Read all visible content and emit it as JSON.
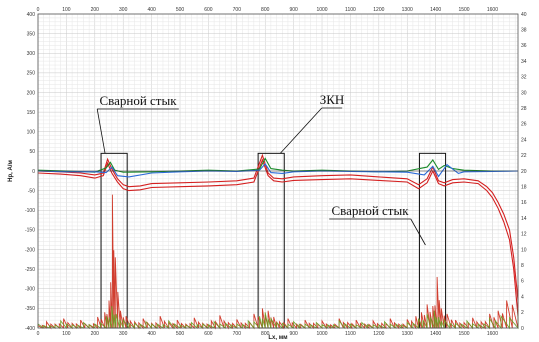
{
  "chart_data": {
    "type": "line",
    "xlabel": "Lx, мм",
    "ylabel": "Hp, А/м",
    "x_ticks": [
      0,
      100,
      200,
      300,
      400,
      500,
      600,
      700,
      800,
      900,
      1000,
      1100,
      1200,
      1300,
      1400,
      1500,
      1600
    ],
    "x_tick_labels": [
      "0",
      "100",
      "200",
      "300",
      "400",
      "500",
      "600",
      "700",
      "800",
      "900",
      "1000",
      "1100",
      "1200",
      "1300",
      "1400",
      "1500",
      "1600"
    ],
    "xlim": [
      0,
      1690
    ],
    "y_left_ticks": [
      -400,
      -350,
      -300,
      -250,
      -200,
      -150,
      -100,
      -50,
      0,
      50,
      100,
      150,
      200,
      250,
      300,
      350,
      400
    ],
    "y_left_tick_labels": [
      "-400",
      "-350",
      "-300",
      "-250",
      "-200",
      "-150",
      "-100",
      "-50",
      "0",
      "50",
      "100",
      "150",
      "200",
      "250",
      "300",
      "350",
      "400"
    ],
    "ylim": [
      -400,
      400
    ],
    "y_right_ticks": [
      0,
      2,
      4,
      6,
      8,
      10,
      12,
      14,
      16,
      18,
      20,
      22,
      24,
      26,
      28,
      30,
      32,
      34,
      36,
      38,
      40
    ],
    "y_right_tick_labels": [
      "0",
      "2",
      "4",
      "6",
      "8",
      "10",
      "12",
      "14",
      "16",
      "18",
      "20",
      "22",
      "24",
      "26",
      "28",
      "30",
      "32",
      "34",
      "36",
      "38",
      "40"
    ],
    "y_right_lim": [
      0,
      40
    ],
    "grid": true,
    "annotations": [
      {
        "text": "Сварной стык",
        "box_x": [
          222,
          314
        ]
      },
      {
        "text": "ЗКН",
        "box_x": [
          775,
          867
        ]
      },
      {
        "text": "Сварной стык",
        "box_x": [
          1343,
          1435
        ]
      }
    ],
    "series": [
      {
        "color": "#d42020",
        "axis": "left",
        "x": [
          0,
          80,
          150,
          200,
          230,
          245,
          260,
          280,
          300,
          320,
          360,
          400,
          500,
          600,
          700,
          760,
          790,
          810,
          830,
          860,
          900,
          1000,
          1100,
          1200,
          1300,
          1340,
          1370,
          1390,
          1410,
          1430,
          1460,
          1500,
          1550,
          1580,
          1600,
          1620,
          1640,
          1660,
          1675,
          1690
        ],
        "y": [
          0,
          -2,
          -5,
          -10,
          -5,
          30,
          5,
          -20,
          -35,
          -40,
          -38,
          -32,
          -30,
          -28,
          -25,
          -18,
          40,
          -5,
          -18,
          -20,
          -15,
          -12,
          -10,
          -15,
          -20,
          -35,
          -20,
          10,
          -25,
          -30,
          -22,
          -20,
          -25,
          -40,
          -55,
          -80,
          -110,
          -150,
          -220,
          -330
        ]
      },
      {
        "color": "#d42020",
        "axis": "left",
        "x": [
          0,
          80,
          150,
          200,
          230,
          245,
          260,
          280,
          300,
          320,
          360,
          400,
          500,
          600,
          700,
          760,
          790,
          810,
          830,
          860,
          900,
          1000,
          1100,
          1200,
          1300,
          1340,
          1370,
          1390,
          1410,
          1430,
          1460,
          1500,
          1550,
          1580,
          1600,
          1620,
          1640,
          1660,
          1675,
          1690
        ],
        "y": [
          -5,
          -8,
          -12,
          -18,
          -12,
          20,
          -5,
          -28,
          -45,
          -50,
          -48,
          -42,
          -40,
          -38,
          -35,
          -28,
          28,
          -12,
          -25,
          -28,
          -24,
          -22,
          -20,
          -24,
          -28,
          -45,
          -30,
          0,
          -32,
          -38,
          -30,
          -28,
          -32,
          -50,
          -68,
          -95,
          -130,
          -175,
          -250,
          -370
        ]
      },
      {
        "color": "#1a8a2a",
        "axis": "left",
        "x": [
          0,
          100,
          200,
          240,
          255,
          270,
          300,
          400,
          500,
          600,
          700,
          780,
          800,
          820,
          860,
          900,
          1000,
          1100,
          1200,
          1300,
          1370,
          1390,
          1410,
          1430,
          1460,
          1500,
          1600,
          1690
        ],
        "y": [
          2,
          0,
          -3,
          8,
          22,
          2,
          -3,
          -2,
          0,
          2,
          0,
          5,
          32,
          6,
          2,
          0,
          2,
          0,
          -2,
          0,
          10,
          28,
          4,
          14,
          6,
          2,
          0,
          0
        ]
      },
      {
        "color": "#2a6ad8",
        "axis": "left",
        "x": [
          0,
          100,
          200,
          240,
          260,
          280,
          320,
          400,
          500,
          600,
          700,
          780,
          800,
          820,
          860,
          900,
          1000,
          1100,
          1200,
          1300,
          1360,
          1390,
          1410,
          1440,
          1480,
          1500,
          1600,
          1690
        ],
        "y": [
          0,
          -2,
          -2,
          -4,
          10,
          -12,
          -15,
          -5,
          -2,
          0,
          -1,
          2,
          18,
          -4,
          -6,
          -2,
          0,
          -1,
          -2,
          -3,
          -10,
          12,
          -14,
          16,
          -6,
          -2,
          -1,
          0
        ]
      },
      {
        "color": "#cc2a1a",
        "axis": "right",
        "kind": "noise",
        "x": [
          0,
          30,
          60,
          90,
          120,
          150,
          180,
          210,
          235,
          250,
          262,
          272,
          290,
          310,
          340,
          370,
          400,
          430,
          460,
          490,
          520,
          550,
          580,
          610,
          640,
          670,
          700,
          730,
          760,
          790,
          810,
          830,
          850,
          880,
          910,
          940,
          970,
          1000,
          1030,
          1060,
          1090,
          1120,
          1150,
          1180,
          1210,
          1240,
          1270,
          1300,
          1330,
          1350,
          1370,
          1390,
          1405,
          1420,
          1440,
          1470,
          1500,
          1530,
          1560,
          1590,
          1620,
          1650,
          1690
        ],
        "y": [
          0.3,
          0.8,
          0.5,
          1.2,
          0.6,
          1.0,
          0.4,
          1.4,
          2.0,
          3.5,
          17.0,
          9.0,
          2.2,
          1.5,
          0.8,
          1.2,
          0.6,
          1.5,
          0.7,
          1.0,
          0.5,
          1.3,
          0.6,
          0.9,
          1.6,
          0.7,
          1.1,
          0.6,
          1.8,
          2.5,
          2.2,
          1.4,
          0.8,
          1.2,
          0.5,
          1.0,
          0.6,
          0.9,
          0.4,
          1.2,
          0.7,
          1.0,
          0.5,
          0.9,
          0.6,
          1.2,
          0.5,
          1.1,
          1.5,
          2.0,
          3.0,
          2.8,
          6.5,
          2.5,
          1.8,
          1.0,
          0.7,
          1.3,
          0.8,
          1.8,
          2.2,
          3.5,
          5.5
        ]
      },
      {
        "color": "#6a9a20",
        "axis": "right",
        "kind": "noise",
        "x": [
          0,
          40,
          80,
          120,
          160,
          200,
          240,
          260,
          275,
          300,
          340,
          380,
          420,
          460,
          500,
          540,
          580,
          620,
          660,
          700,
          740,
          780,
          800,
          820,
          860,
          900,
          940,
          980,
          1020,
          1060,
          1100,
          1140,
          1180,
          1220,
          1260,
          1300,
          1340,
          1370,
          1395,
          1410,
          1430,
          1470,
          1510,
          1550,
          1590,
          1630,
          1690
        ],
        "y": [
          0.5,
          0.3,
          0.9,
          0.4,
          0.7,
          0.5,
          1.5,
          2.8,
          1.8,
          1.0,
          0.6,
          0.8,
          0.5,
          0.9,
          0.4,
          0.7,
          0.5,
          0.8,
          0.6,
          0.5,
          0.9,
          1.5,
          2.0,
          1.2,
          0.6,
          0.8,
          0.5,
          0.7,
          0.4,
          0.9,
          0.5,
          0.7,
          0.4,
          0.8,
          0.5,
          0.7,
          1.2,
          1.8,
          2.2,
          1.4,
          1.0,
          0.6,
          0.9,
          0.5,
          1.2,
          1.5,
          2.5
        ]
      }
    ]
  }
}
